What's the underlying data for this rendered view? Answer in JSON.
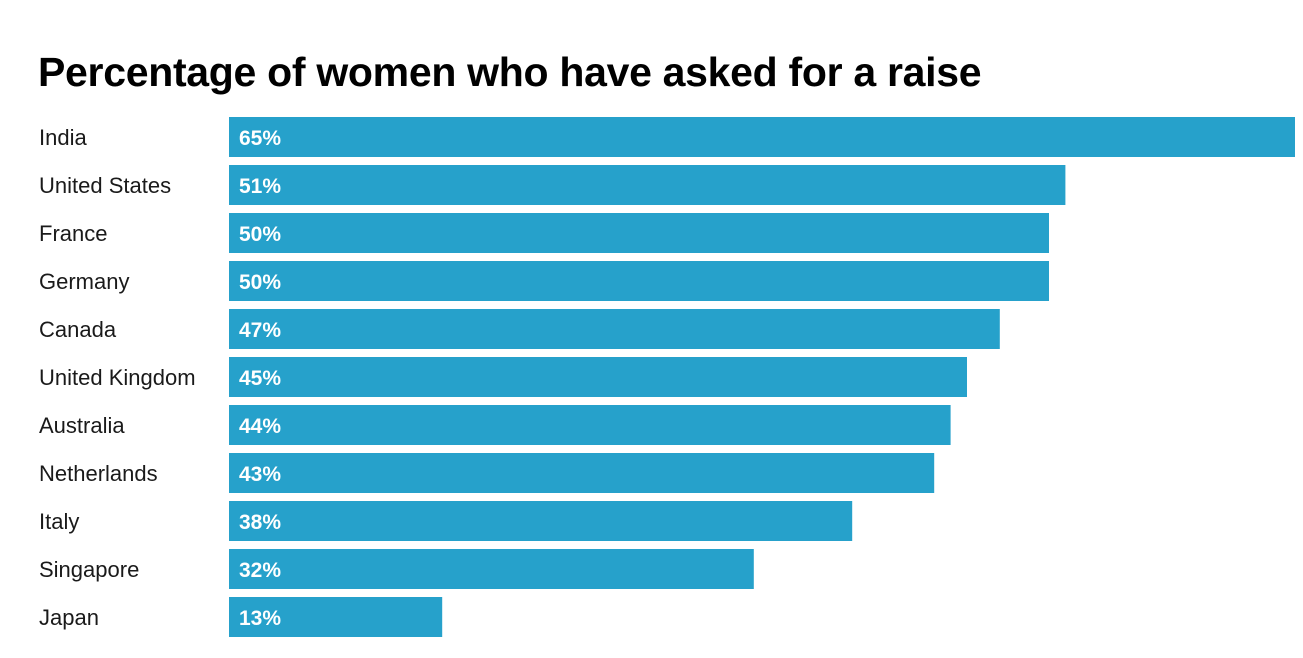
{
  "chart_data": {
    "type": "bar",
    "orientation": "horizontal",
    "title": "Percentage of women who have asked for a raise",
    "categories": [
      "India",
      "United States",
      "France",
      "Germany",
      "Canada",
      "United Kingdom",
      "Australia",
      "Netherlands",
      "Italy",
      "Singapore",
      "Japan"
    ],
    "values": [
      65,
      51,
      50,
      50,
      47,
      45,
      44,
      43,
      38,
      32,
      13
    ],
    "value_labels": [
      "65%",
      "51%",
      "50%",
      "50%",
      "47%",
      "45%",
      "44%",
      "43%",
      "38%",
      "32%",
      "13%"
    ],
    "unit": "%",
    "xlim": [
      0,
      65
    ],
    "grid": false,
    "legend": "none",
    "bar_color": "#26a1cb"
  }
}
